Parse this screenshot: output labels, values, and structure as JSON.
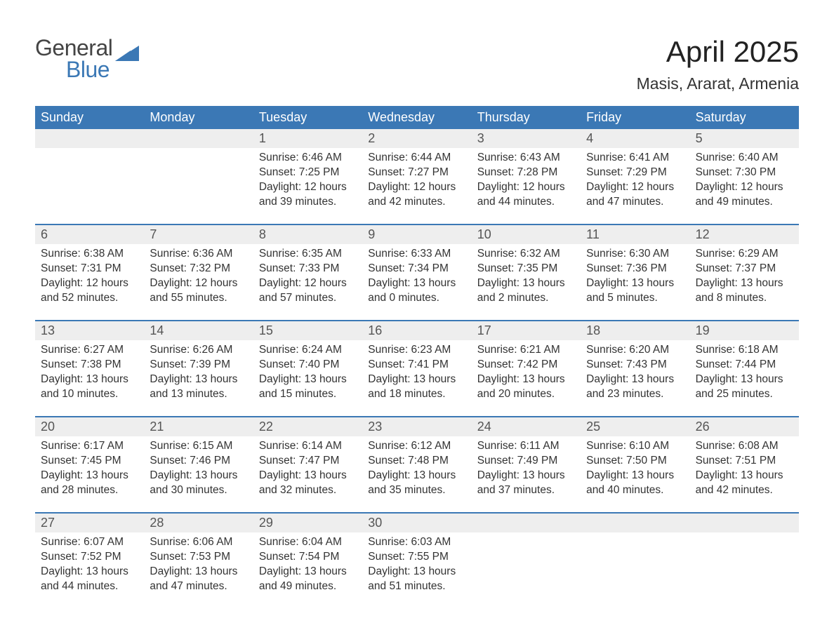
{
  "brand": {
    "line1": "General",
    "line2": "Blue",
    "text_color": "#444444",
    "accent_color": "#3b78b5"
  },
  "title": {
    "month": "April 2025",
    "location": "Masis, Ararat, Armenia"
  },
  "colors": {
    "header_bg": "#3b78b5",
    "header_text": "#ffffff",
    "daynum_bg": "#eeeeee",
    "row_border": "#3b78b5",
    "body_text": "#333333",
    "page_bg": "#ffffff"
  },
  "day_labels": [
    "Sunday",
    "Monday",
    "Tuesday",
    "Wednesday",
    "Thursday",
    "Friday",
    "Saturday"
  ],
  "weeks": [
    [
      null,
      null,
      {
        "d": "1",
        "sr": "Sunrise: 6:46 AM",
        "ss": "Sunset: 7:25 PM",
        "dl1": "Daylight: 12 hours",
        "dl2": "and 39 minutes."
      },
      {
        "d": "2",
        "sr": "Sunrise: 6:44 AM",
        "ss": "Sunset: 7:27 PM",
        "dl1": "Daylight: 12 hours",
        "dl2": "and 42 minutes."
      },
      {
        "d": "3",
        "sr": "Sunrise: 6:43 AM",
        "ss": "Sunset: 7:28 PM",
        "dl1": "Daylight: 12 hours",
        "dl2": "and 44 minutes."
      },
      {
        "d": "4",
        "sr": "Sunrise: 6:41 AM",
        "ss": "Sunset: 7:29 PM",
        "dl1": "Daylight: 12 hours",
        "dl2": "and 47 minutes."
      },
      {
        "d": "5",
        "sr": "Sunrise: 6:40 AM",
        "ss": "Sunset: 7:30 PM",
        "dl1": "Daylight: 12 hours",
        "dl2": "and 49 minutes."
      }
    ],
    [
      {
        "d": "6",
        "sr": "Sunrise: 6:38 AM",
        "ss": "Sunset: 7:31 PM",
        "dl1": "Daylight: 12 hours",
        "dl2": "and 52 minutes."
      },
      {
        "d": "7",
        "sr": "Sunrise: 6:36 AM",
        "ss": "Sunset: 7:32 PM",
        "dl1": "Daylight: 12 hours",
        "dl2": "and 55 minutes."
      },
      {
        "d": "8",
        "sr": "Sunrise: 6:35 AM",
        "ss": "Sunset: 7:33 PM",
        "dl1": "Daylight: 12 hours",
        "dl2": "and 57 minutes."
      },
      {
        "d": "9",
        "sr": "Sunrise: 6:33 AM",
        "ss": "Sunset: 7:34 PM",
        "dl1": "Daylight: 13 hours",
        "dl2": "and 0 minutes."
      },
      {
        "d": "10",
        "sr": "Sunrise: 6:32 AM",
        "ss": "Sunset: 7:35 PM",
        "dl1": "Daylight: 13 hours",
        "dl2": "and 2 minutes."
      },
      {
        "d": "11",
        "sr": "Sunrise: 6:30 AM",
        "ss": "Sunset: 7:36 PM",
        "dl1": "Daylight: 13 hours",
        "dl2": "and 5 minutes."
      },
      {
        "d": "12",
        "sr": "Sunrise: 6:29 AM",
        "ss": "Sunset: 7:37 PM",
        "dl1": "Daylight: 13 hours",
        "dl2": "and 8 minutes."
      }
    ],
    [
      {
        "d": "13",
        "sr": "Sunrise: 6:27 AM",
        "ss": "Sunset: 7:38 PM",
        "dl1": "Daylight: 13 hours",
        "dl2": "and 10 minutes."
      },
      {
        "d": "14",
        "sr": "Sunrise: 6:26 AM",
        "ss": "Sunset: 7:39 PM",
        "dl1": "Daylight: 13 hours",
        "dl2": "and 13 minutes."
      },
      {
        "d": "15",
        "sr": "Sunrise: 6:24 AM",
        "ss": "Sunset: 7:40 PM",
        "dl1": "Daylight: 13 hours",
        "dl2": "and 15 minutes."
      },
      {
        "d": "16",
        "sr": "Sunrise: 6:23 AM",
        "ss": "Sunset: 7:41 PM",
        "dl1": "Daylight: 13 hours",
        "dl2": "and 18 minutes."
      },
      {
        "d": "17",
        "sr": "Sunrise: 6:21 AM",
        "ss": "Sunset: 7:42 PM",
        "dl1": "Daylight: 13 hours",
        "dl2": "and 20 minutes."
      },
      {
        "d": "18",
        "sr": "Sunrise: 6:20 AM",
        "ss": "Sunset: 7:43 PM",
        "dl1": "Daylight: 13 hours",
        "dl2": "and 23 minutes."
      },
      {
        "d": "19",
        "sr": "Sunrise: 6:18 AM",
        "ss": "Sunset: 7:44 PM",
        "dl1": "Daylight: 13 hours",
        "dl2": "and 25 minutes."
      }
    ],
    [
      {
        "d": "20",
        "sr": "Sunrise: 6:17 AM",
        "ss": "Sunset: 7:45 PM",
        "dl1": "Daylight: 13 hours",
        "dl2": "and 28 minutes."
      },
      {
        "d": "21",
        "sr": "Sunrise: 6:15 AM",
        "ss": "Sunset: 7:46 PM",
        "dl1": "Daylight: 13 hours",
        "dl2": "and 30 minutes."
      },
      {
        "d": "22",
        "sr": "Sunrise: 6:14 AM",
        "ss": "Sunset: 7:47 PM",
        "dl1": "Daylight: 13 hours",
        "dl2": "and 32 minutes."
      },
      {
        "d": "23",
        "sr": "Sunrise: 6:12 AM",
        "ss": "Sunset: 7:48 PM",
        "dl1": "Daylight: 13 hours",
        "dl2": "and 35 minutes."
      },
      {
        "d": "24",
        "sr": "Sunrise: 6:11 AM",
        "ss": "Sunset: 7:49 PM",
        "dl1": "Daylight: 13 hours",
        "dl2": "and 37 minutes."
      },
      {
        "d": "25",
        "sr": "Sunrise: 6:10 AM",
        "ss": "Sunset: 7:50 PM",
        "dl1": "Daylight: 13 hours",
        "dl2": "and 40 minutes."
      },
      {
        "d": "26",
        "sr": "Sunrise: 6:08 AM",
        "ss": "Sunset: 7:51 PM",
        "dl1": "Daylight: 13 hours",
        "dl2": "and 42 minutes."
      }
    ],
    [
      {
        "d": "27",
        "sr": "Sunrise: 6:07 AM",
        "ss": "Sunset: 7:52 PM",
        "dl1": "Daylight: 13 hours",
        "dl2": "and 44 minutes."
      },
      {
        "d": "28",
        "sr": "Sunrise: 6:06 AM",
        "ss": "Sunset: 7:53 PM",
        "dl1": "Daylight: 13 hours",
        "dl2": "and 47 minutes."
      },
      {
        "d": "29",
        "sr": "Sunrise: 6:04 AM",
        "ss": "Sunset: 7:54 PM",
        "dl1": "Daylight: 13 hours",
        "dl2": "and 49 minutes."
      },
      {
        "d": "30",
        "sr": "Sunrise: 6:03 AM",
        "ss": "Sunset: 7:55 PM",
        "dl1": "Daylight: 13 hours",
        "dl2": "and 51 minutes."
      },
      null,
      null,
      null
    ]
  ]
}
